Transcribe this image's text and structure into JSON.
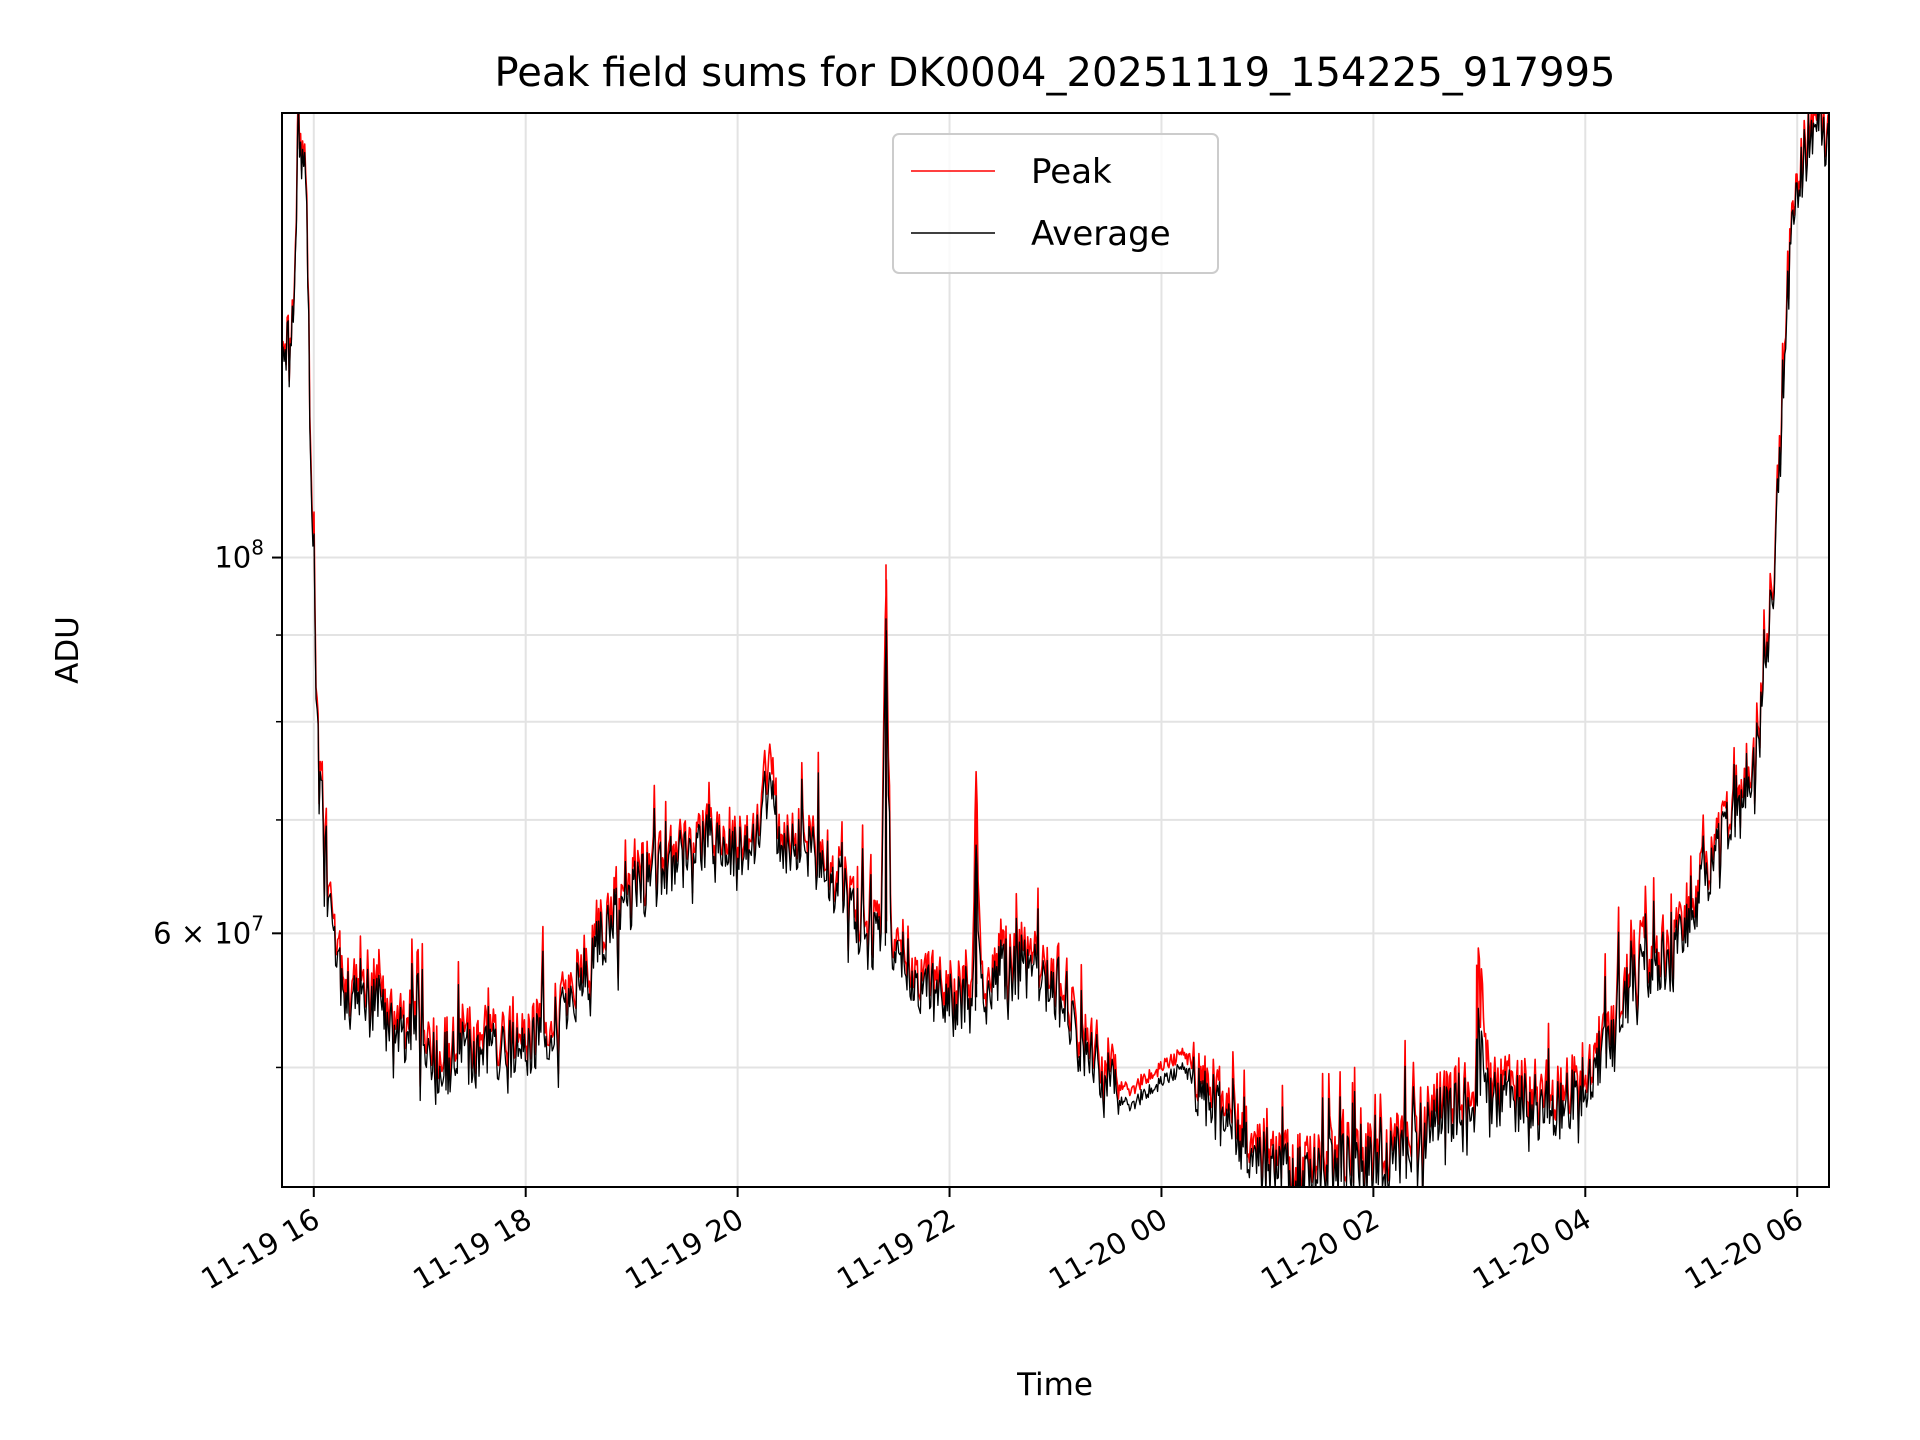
{
  "chart_data": {
    "type": "line",
    "title": "Peak field sums for DK0004_20251119_154225_917995",
    "xlabel": "Time",
    "ylabel": "ADU",
    "yscale": "log",
    "grid": true,
    "legend_position": "top-center",
    "x_unit": "hours since 2025-11-19 00:00",
    "xlim": [
      15.7,
      30.3
    ],
    "ylim": [
      42500000,
      183000000
    ],
    "x_ticks": [
      {
        "value": 16,
        "label": "11-19 16"
      },
      {
        "value": 18,
        "label": "11-19 18"
      },
      {
        "value": 20,
        "label": "11-19 20"
      },
      {
        "value": 22,
        "label": "11-19 22"
      },
      {
        "value": 24,
        "label": "11-20 00"
      },
      {
        "value": 26,
        "label": "11-20 02"
      },
      {
        "value": 28,
        "label": "11-20 04"
      },
      {
        "value": 30,
        "label": "11-20 06"
      }
    ],
    "y_major_ticks": [
      {
        "value": 100000000,
        "label": "10",
        "exponent": "8"
      },
      {
        "value": 60000000,
        "label": "6 × 10",
        "exponent": "7"
      }
    ],
    "y_minor_ticks": [
      50000000,
      70000000,
      80000000,
      90000000
    ],
    "series": [
      {
        "name": "Peak",
        "color": "#ff0000",
        "x": [
          15.7,
          15.78,
          15.86,
          15.92,
          15.98,
          16.05,
          16.12,
          16.2,
          16.28,
          16.4,
          16.6,
          16.8,
          17.0,
          17.2,
          17.4,
          17.6,
          17.8,
          18.0,
          18.2,
          18.4,
          18.6,
          18.8,
          19.0,
          19.2,
          19.4,
          19.6,
          19.8,
          20.0,
          20.2,
          20.3,
          20.4,
          20.6,
          20.8,
          21.0,
          21.2,
          21.35,
          21.4,
          21.45,
          21.6,
          21.8,
          22.0,
          22.2,
          22.25,
          22.3,
          22.5,
          22.7,
          22.9,
          23.1,
          23.2,
          23.4,
          23.6,
          23.7,
          23.8,
          24.0,
          24.2,
          24.4,
          24.6,
          24.8,
          24.9,
          25.0,
          25.2,
          25.4,
          25.6,
          25.8,
          26.0,
          26.2,
          26.4,
          26.6,
          26.8,
          26.97,
          27.0,
          27.1,
          27.3,
          27.5,
          27.7,
          27.9,
          28.1,
          28.3,
          28.5,
          28.55,
          28.6,
          28.8,
          29.0,
          29.2,
          29.4,
          29.6,
          29.75,
          29.85,
          29.95,
          30.05,
          30.15,
          30.3
        ],
        "values": [
          138000000,
          132000000,
          172000000,
          174000000,
          110000000,
          74000000,
          68000000,
          61000000,
          56000000,
          55500000,
          55000000,
          53500000,
          53000000,
          51000000,
          52000000,
          51500000,
          52500000,
          51500000,
          53500000,
          55000000,
          58000000,
          62000000,
          64000000,
          66000000,
          67000000,
          69000000,
          68000000,
          67500000,
          70000000,
          77000000,
          68000000,
          69000000,
          67500000,
          64000000,
          61000000,
          60000000,
          99000000,
          61000000,
          58500000,
          56500000,
          55500000,
          55000000,
          73000000,
          56000000,
          58000000,
          58500000,
          57000000,
          56000000,
          53000000,
          51000000,
          49000000,
          48500000,
          49000000,
          50000000,
          51000000,
          49500000,
          47500000,
          46000000,
          45000000,
          44500000,
          44000000,
          44000000,
          44500000,
          44500000,
          44500000,
          45000000,
          46500000,
          47500000,
          48500000,
          49000000,
          57500000,
          49000000,
          49000000,
          48500000,
          48000000,
          49500000,
          51000000,
          54000000,
          58000000,
          64000000,
          57000000,
          58500000,
          62500000,
          67000000,
          72000000,
          76000000,
          92000000,
          120000000,
          162000000,
          172000000,
          182000000,
          180000000
        ]
      },
      {
        "name": "Average",
        "color": "#000000",
        "x": [
          15.7,
          15.78,
          15.86,
          15.92,
          15.98,
          16.05,
          16.12,
          16.2,
          16.28,
          16.4,
          16.6,
          16.8,
          17.0,
          17.2,
          17.4,
          17.6,
          17.8,
          18.0,
          18.2,
          18.4,
          18.6,
          18.8,
          19.0,
          19.2,
          19.4,
          19.6,
          19.8,
          20.0,
          20.2,
          20.3,
          20.4,
          20.6,
          20.8,
          21.0,
          21.2,
          21.35,
          21.4,
          21.45,
          21.6,
          21.8,
          22.0,
          22.2,
          22.25,
          22.3,
          22.5,
          22.7,
          22.9,
          23.1,
          23.2,
          23.4,
          23.6,
          23.7,
          23.8,
          24.0,
          24.2,
          24.4,
          24.6,
          24.8,
          24.9,
          25.0,
          25.2,
          25.4,
          25.6,
          25.8,
          26.0,
          26.2,
          26.4,
          26.6,
          26.8,
          26.97,
          27.0,
          27.1,
          27.3,
          27.5,
          27.7,
          27.9,
          28.1,
          28.3,
          28.5,
          28.55,
          28.6,
          28.8,
          29.0,
          29.2,
          29.4,
          29.6,
          29.75,
          29.85,
          29.95,
          30.05,
          30.15,
          30.3
        ],
        "values": [
          137000000,
          131000000,
          170000000,
          172000000,
          108000000,
          73000000,
          67000000,
          60000000,
          55000000,
          54500000,
          54000000,
          52500000,
          52000000,
          50000000,
          51000000,
          50500000,
          51500000,
          50500000,
          52500000,
          54000000,
          57000000,
          61000000,
          63000000,
          65000000,
          66000000,
          68000000,
          67000000,
          66500000,
          69000000,
          74000000,
          67000000,
          68000000,
          66500000,
          63000000,
          60000000,
          59000000,
          92000000,
          60000000,
          57500000,
          55500000,
          54500000,
          54000000,
          66000000,
          55000000,
          57000000,
          57500000,
          56000000,
          55000000,
          52000000,
          50000000,
          48000000,
          47500000,
          48000000,
          49000000,
          50000000,
          48500000,
          46500000,
          45000000,
          44200000,
          43700000,
          43200000,
          43200000,
          43700000,
          43700000,
          43700000,
          44200000,
          45500000,
          46500000,
          47500000,
          48000000,
          52000000,
          48000000,
          48000000,
          47500000,
          47000000,
          48500000,
          50000000,
          53000000,
          57000000,
          61000000,
          56000000,
          57500000,
          61500000,
          66000000,
          71000000,
          75000000,
          91000000,
          118000000,
          160000000,
          170000000,
          179000000,
          178000000
        ]
      }
    ]
  }
}
